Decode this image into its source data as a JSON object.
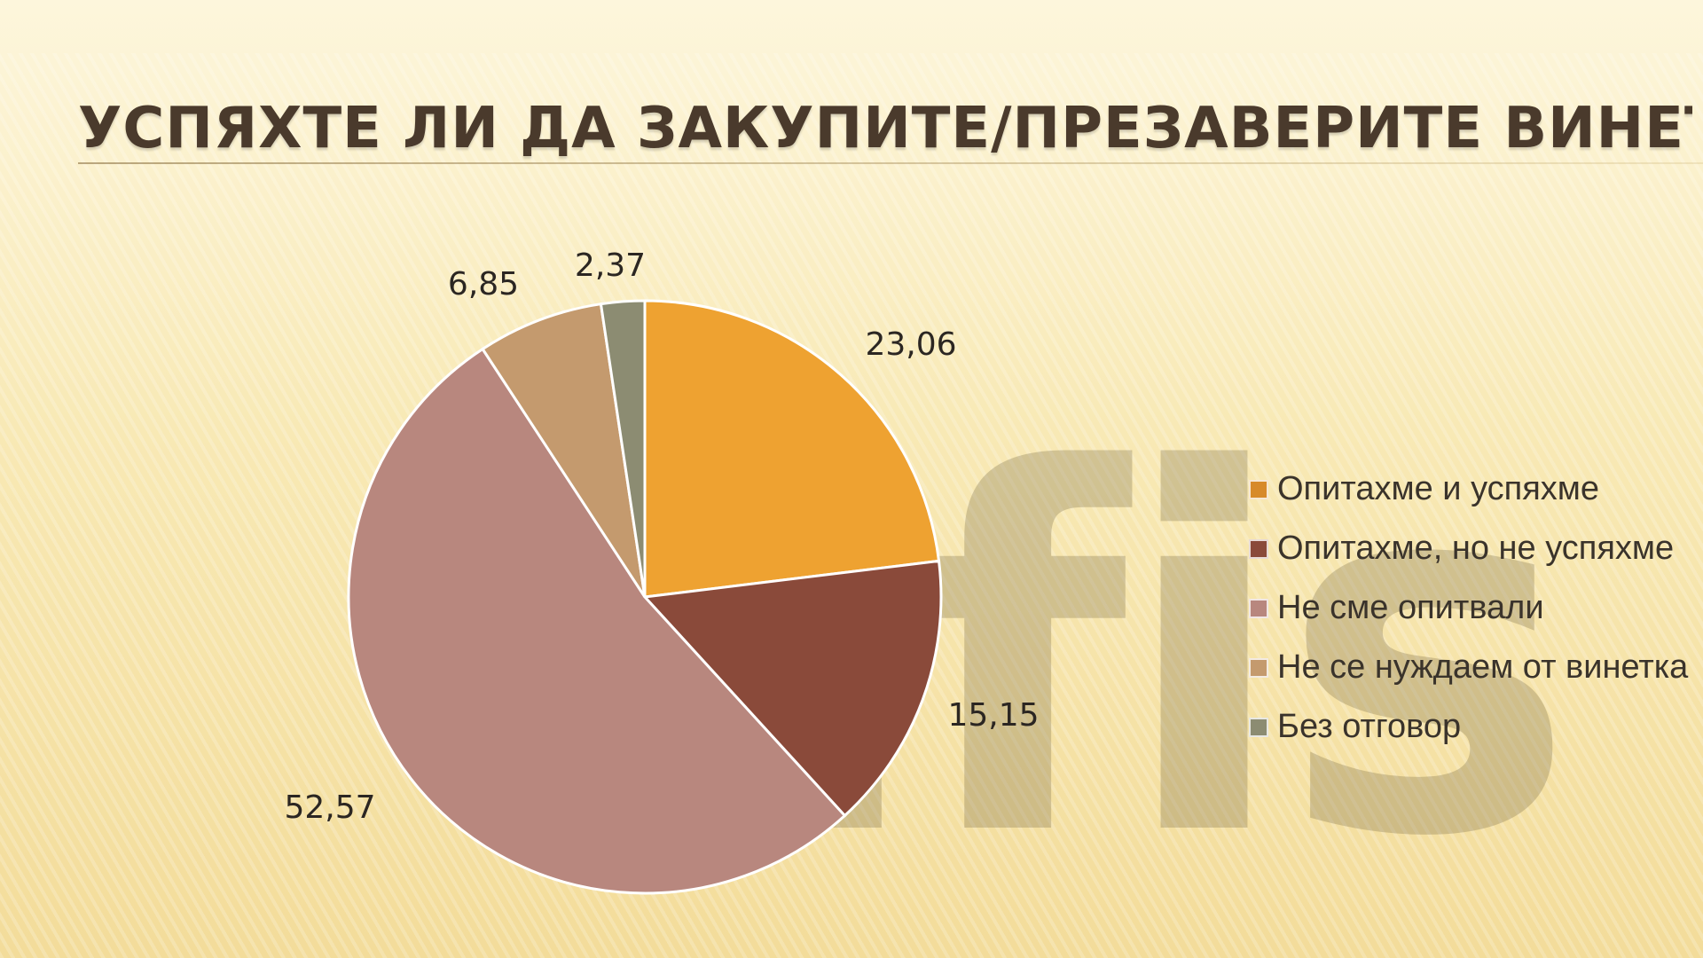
{
  "title": "УСПЯХТЕ ЛИ ДА ЗАКУПИТЕ/ПРЕЗАВЕРИТЕ ВИНЕТКА?",
  "watermark_text": "afis",
  "chart_data": {
    "type": "pie",
    "title": "",
    "categories": [
      "Опитахме и успяхме",
      "Опитахме, но не успяхме",
      "Не сме опитвали",
      "Не се нуждаем от винетка",
      "Без отговор"
    ],
    "values": [
      23.06,
      15.15,
      52.57,
      6.85,
      2.37
    ],
    "value_labels": [
      "23,06",
      "15,15",
      "52,57",
      "6,85",
      "2,37"
    ],
    "colors": [
      "#eea231",
      "#8a4a3a",
      "#b8877e",
      "#c49a6e",
      "#8c8c72"
    ],
    "legend_position": "right",
    "start_angle": "top, clockwise"
  },
  "legend": {
    "items": [
      {
        "label": "Опитахме и успяхме",
        "color": "#d78a2a"
      },
      {
        "label": "Опитахме, но не успяхме",
        "color": "#8a4a3a"
      },
      {
        "label": "Не сме опитвали",
        "color": "#b8877e"
      },
      {
        "label": "Не се нуждаем от винетка",
        "color": "#c49a6e"
      },
      {
        "label": "Без отговор",
        "color": "#8c8c72"
      }
    ]
  }
}
